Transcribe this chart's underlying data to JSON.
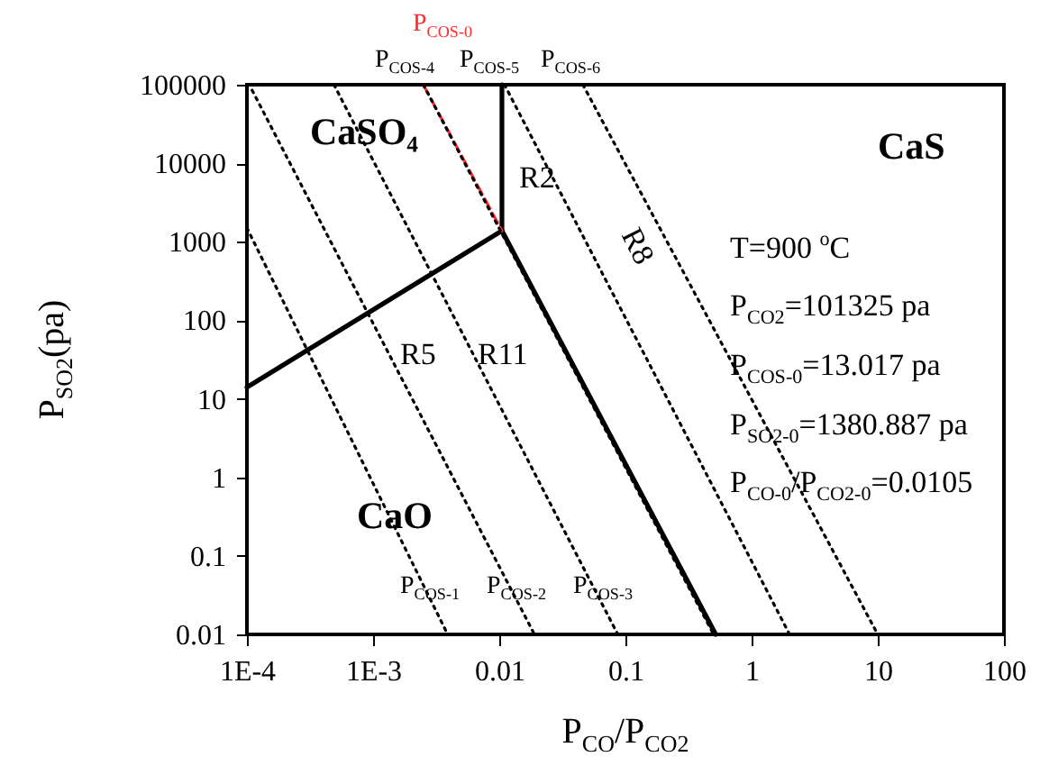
{
  "chart_data": {
    "type": "line",
    "xlabel": "P$_{CO}$/P$_{CO2}$",
    "ylabel": "P$_{SO2}$(pa)",
    "log": "xy",
    "grid": false,
    "xlim": [
      0.0001,
      100
    ],
    "ylim": [
      0.01,
      100000
    ],
    "xticks": [
      {
        "value": 0.0001,
        "label": "1E-4"
      },
      {
        "value": 0.001,
        "label": "1E-3"
      },
      0.01,
      0.1,
      1,
      10,
      100
    ],
    "yticks": [
      0.01,
      0.1,
      1,
      10,
      100,
      1000,
      10000,
      100000
    ],
    "series": [
      {
        "color": "#000000",
        "line_style": "solid",
        "x": [
          0.0001,
          0.0105
        ],
        "values": [
          14,
          1380.887
        ]
      },
      {
        "color": "#000000",
        "line_style": "solid",
        "x": [
          0.0105,
          0.0105
        ],
        "values": [
          1380.887,
          100000
        ]
      },
      {
        "color": "#000000",
        "line_style": "solid",
        "x": [
          0.0105,
          0.52
        ],
        "values": [
          1380.887,
          0.01
        ]
      },
      {
        "name": "P$_{COS-0}$",
        "color": "#ff2a2a",
        "line_style": "dashed",
        "x": [
          0.0025,
          0.0105
        ],
        "values": [
          100000,
          1380.887
        ]
      },
      {
        "name": "P$_{COS-1}$",
        "color": "#000000",
        "line_style": "dotted",
        "x": [
          0.0001,
          0.0039
        ],
        "values": [
          1500,
          0.01
        ]
      },
      {
        "name": "P$_{COS-2}$",
        "color": "#000000",
        "line_style": "dotted",
        "x": [
          0.00011,
          0.019
        ],
        "values": [
          85000,
          0.01
        ]
      },
      {
        "name": "P$_{COS-3}$",
        "color": "#000000",
        "line_style": "dotted",
        "x": [
          0.00049,
          0.087
        ],
        "values": [
          100000,
          0.01
        ]
      },
      {
        "name": "P$_{COS-4}$",
        "color": "#000000",
        "line_style": "dotted",
        "x": [
          0.0025,
          0.5
        ],
        "values": [
          100000,
          0.01
        ]
      },
      {
        "name": "P$_{COS-5}$",
        "color": "#000000",
        "line_style": "dotted",
        "x": [
          0.011,
          2
        ],
        "values": [
          100000,
          0.01
        ]
      },
      {
        "name": "P$_{COS-6}$",
        "color": "#000000",
        "line_style": "dotted",
        "x": [
          0.046,
          10
        ],
        "values": [
          100000,
          0.01
        ]
      }
    ],
    "annotations": [
      "CaSO₄",
      "CaS",
      "CaO",
      "R2",
      "R5",
      "R11",
      "R8",
      "T=900 $^{o}$C",
      "P$_{CO2}$=101325 pa",
      "P$_{COS-0}$=13.017 pa",
      "P$_{SO2-0}$=1380.887 pa",
      "P$_{CO-0}$/P$_{CO2-0}$=0.0105"
    ]
  }
}
